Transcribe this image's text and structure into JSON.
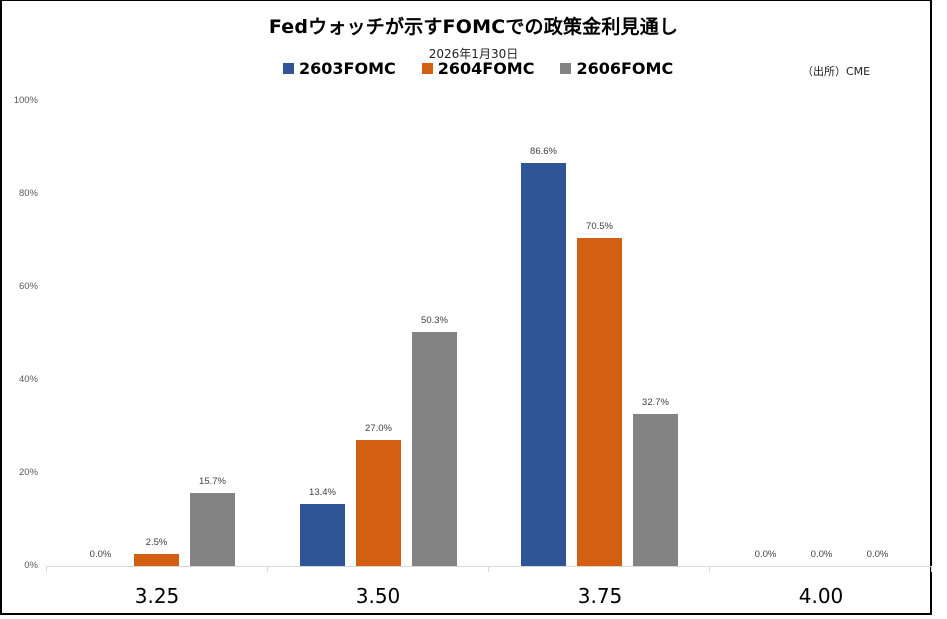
{
  "title": "Fedウォッチが示すFOMCでの政策金利見通し",
  "subtitle": "2026年1月30日",
  "source": "（出所）CME",
  "legend": [
    {
      "label": "2603FOMC",
      "color": "#2F5597"
    },
    {
      "label": "2604FOMC",
      "color": "#D35F13"
    },
    {
      "label": "2606FOMC",
      "color": "#838383"
    }
  ],
  "y_ticks": [
    "100%",
    "80%",
    "60%",
    "40%",
    "20%",
    "0%"
  ],
  "chart_data": {
    "type": "bar",
    "title": "Fedウォッチが示すFOMCでの政策金利見通し",
    "subtitle": "2026年1月30日",
    "annotation": "（出所）CME",
    "categories": [
      "3.25",
      "3.50",
      "3.75",
      "4.00"
    ],
    "series": [
      {
        "name": "2603FOMC",
        "color": "#2F5597",
        "values": [
          0.0,
          13.4,
          86.6,
          0.0
        ],
        "labels": [
          "0.0%",
          "13.4%",
          "86.6%",
          "0.0%"
        ]
      },
      {
        "name": "2604FOMC",
        "color": "#D35F13",
        "values": [
          2.5,
          27.0,
          70.5,
          0.0
        ],
        "labels": [
          "2.5%",
          "27.0%",
          "70.5%",
          "0.0%"
        ]
      },
      {
        "name": "2606FOMC",
        "color": "#838383",
        "values": [
          15.7,
          50.3,
          32.7,
          0.0
        ],
        "labels": [
          "15.7%",
          "50.3%",
          "32.7%",
          "0.0%"
        ]
      }
    ],
    "xlabel": "",
    "ylabel": "",
    "ylim": [
      0,
      100
    ],
    "y_tick_format": "percent",
    "grid": false,
    "legend_position": "top"
  }
}
